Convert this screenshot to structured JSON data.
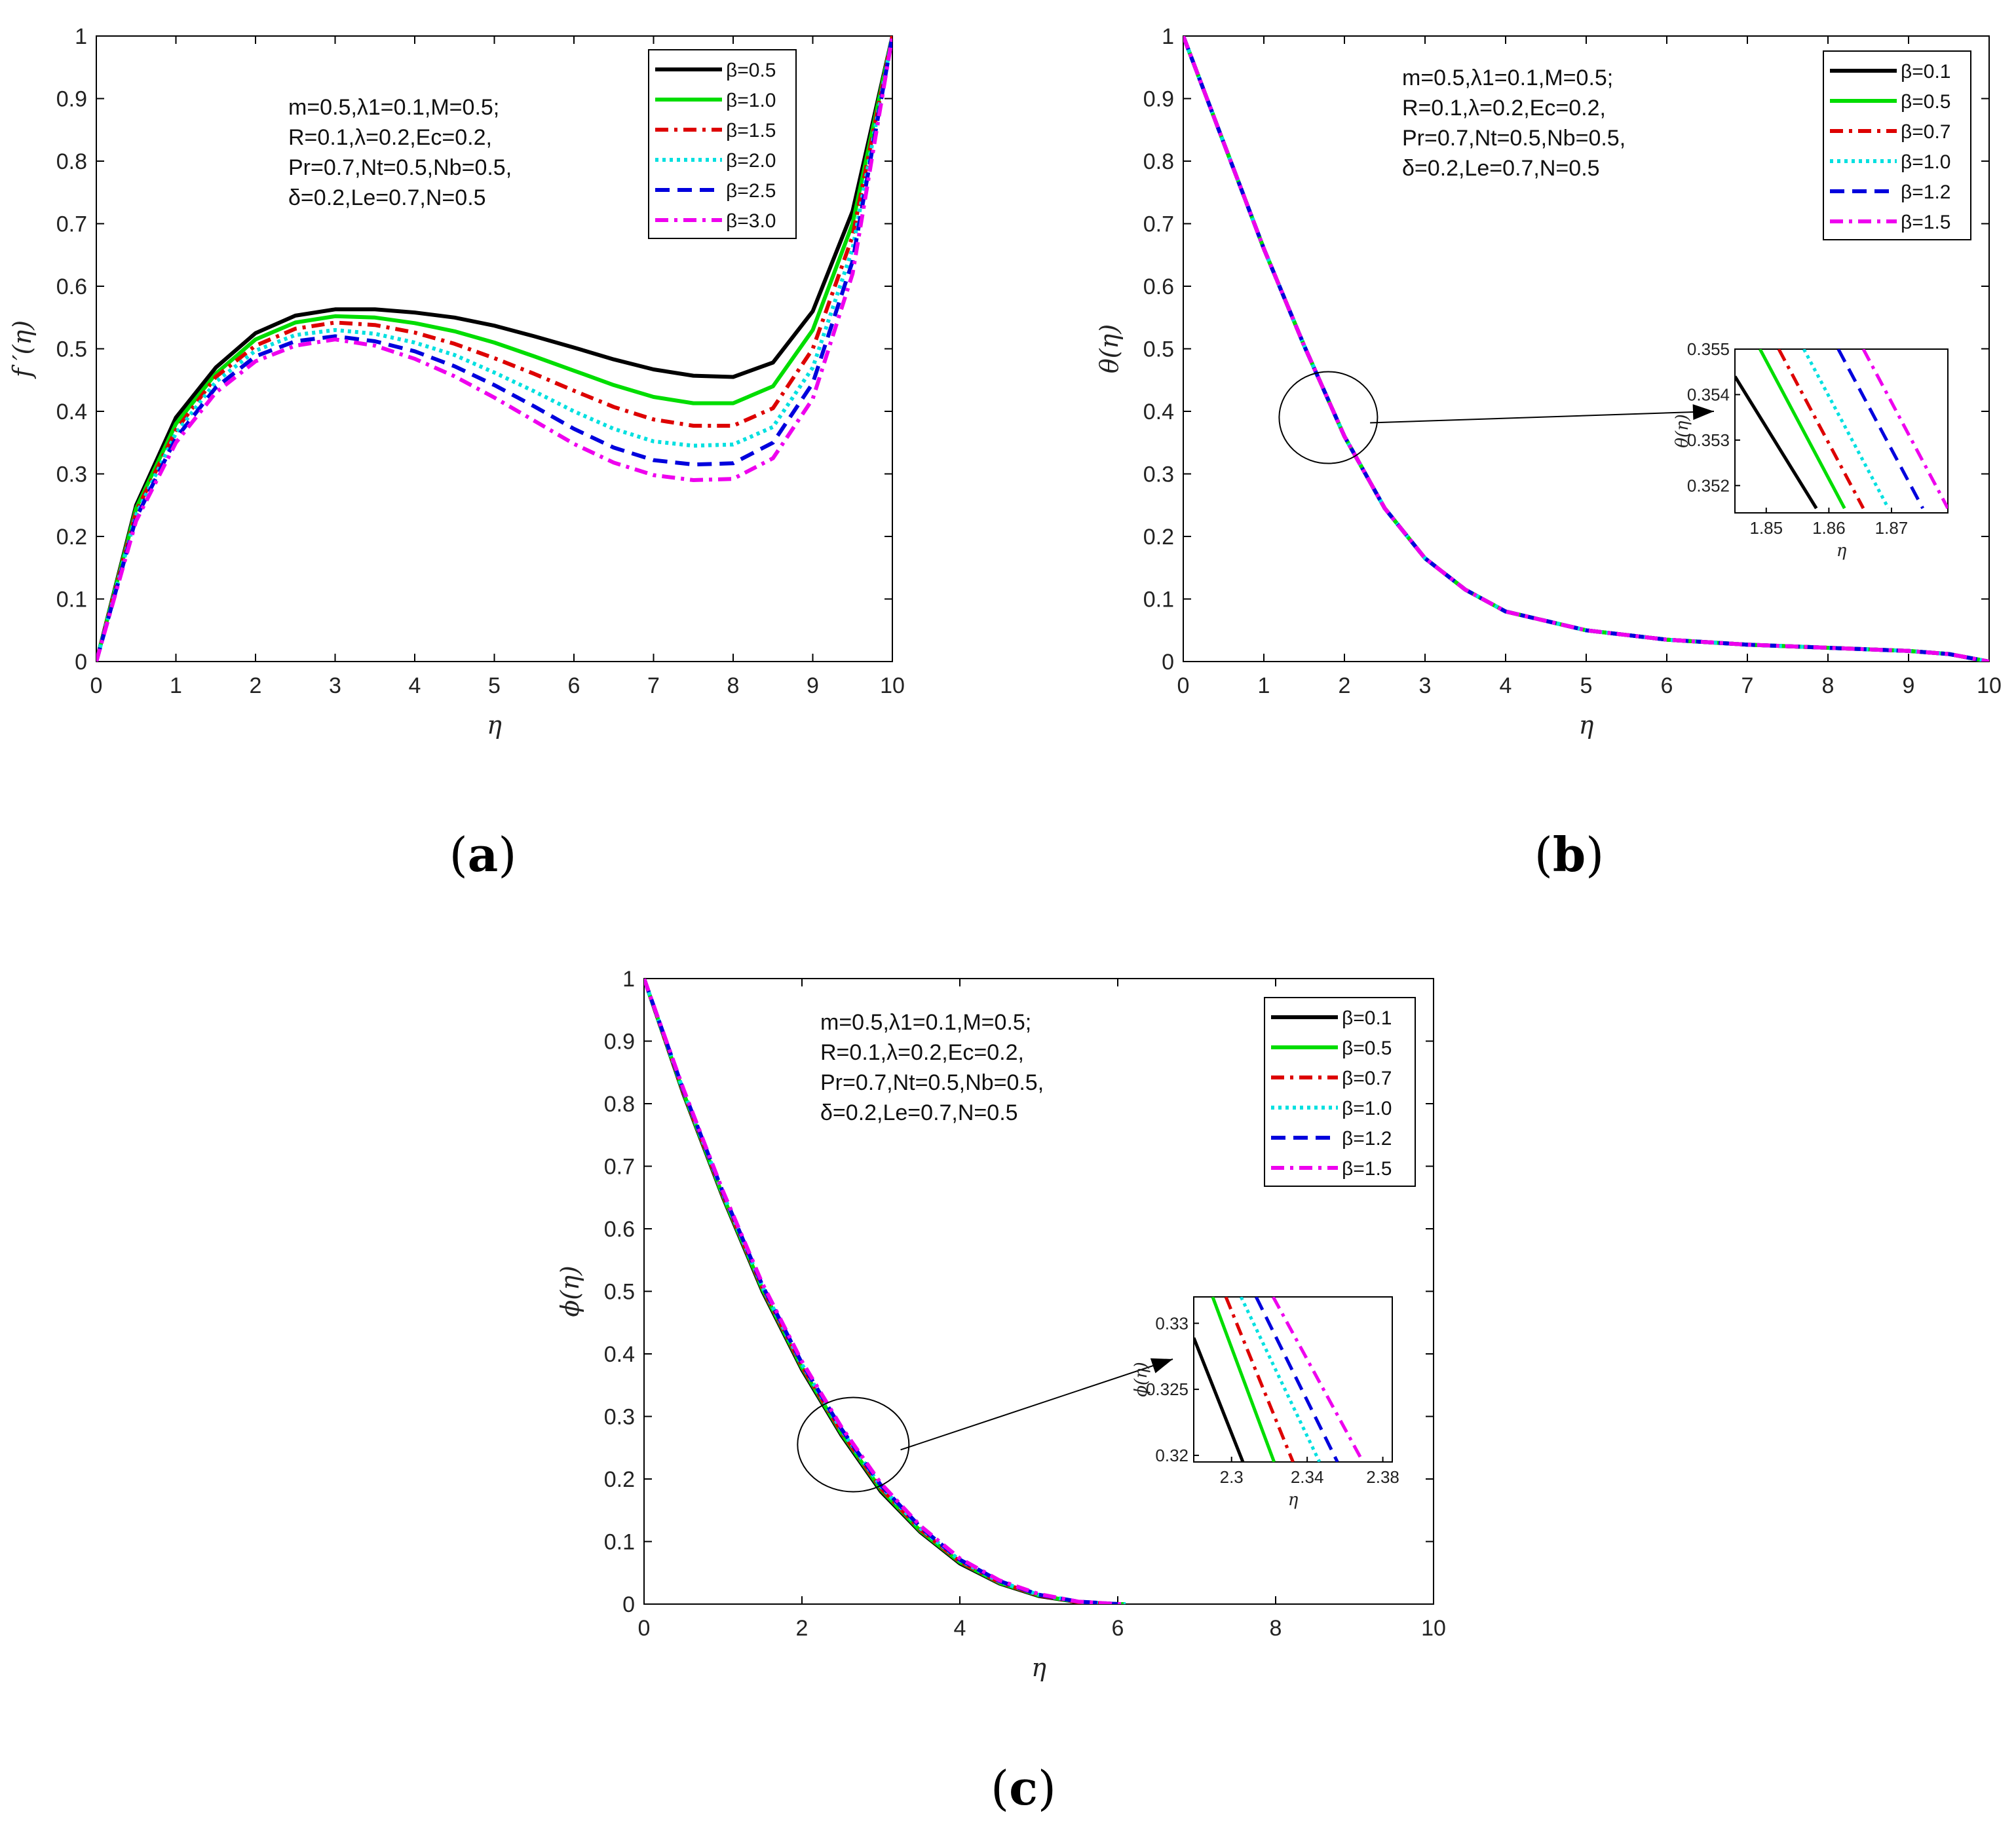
{
  "chart_data": [
    {
      "type": "line",
      "panel_label": {
        "open": "(",
        "letter": "a",
        "close": ")"
      },
      "xlabel": "η",
      "ylabel": "f ′(η)",
      "xlim": [
        0,
        10
      ],
      "ylim": [
        0,
        1
      ],
      "xticks": [
        0,
        1,
        2,
        3,
        4,
        5,
        6,
        7,
        8,
        9,
        10
      ],
      "yticks": [
        0,
        0.1,
        0.2,
        0.3,
        0.4,
        0.5,
        0.6,
        0.7,
        0.8,
        0.9,
        1
      ],
      "parameters": [
        "m=0.5,λ1=0.1,M=0.5;",
        "R=0.1,λ=0.2,Ec=0.2,",
        "Pr=0.7,Nt=0.5,Nb=0.5,",
        "δ=0.2,Le=0.7,N=0.5"
      ],
      "legend_position": "top-right",
      "series": [
        {
          "name": "β=0.5",
          "color": "#000000",
          "dash": "solid",
          "x": [
            0,
            0.5,
            1,
            1.5,
            2,
            2.5,
            3,
            3.5,
            4,
            4.5,
            5,
            5.5,
            6,
            6.5,
            7,
            7.5,
            8,
            8.5,
            9,
            9.5,
            10
          ],
          "y": [
            0,
            0.25,
            0.39,
            0.47,
            0.525,
            0.553,
            0.563,
            0.563,
            0.558,
            0.55,
            0.537,
            0.52,
            0.502,
            0.483,
            0.467,
            0.457,
            0.455,
            0.478,
            0.56,
            0.72,
            1
          ]
        },
        {
          "name": "β=1.0",
          "color": "#00dd00",
          "dash": "solid",
          "x": [
            0,
            0.5,
            1,
            1.5,
            2,
            2.5,
            3,
            3.5,
            4,
            4.5,
            5,
            5.5,
            6,
            6.5,
            7,
            7.5,
            8,
            8.5,
            9,
            9.5,
            10
          ],
          "y": [
            0,
            0.245,
            0.38,
            0.46,
            0.515,
            0.542,
            0.552,
            0.55,
            0.541,
            0.528,
            0.51,
            0.488,
            0.465,
            0.442,
            0.423,
            0.413,
            0.413,
            0.44,
            0.53,
            0.7,
            1
          ]
        },
        {
          "name": "β=1.5",
          "color": "#dd0000",
          "dash": "dashdot",
          "x": [
            0,
            0.5,
            1,
            1.5,
            2,
            2.5,
            3,
            3.5,
            4,
            4.5,
            5,
            5.5,
            6,
            6.5,
            7,
            7.5,
            8,
            8.5,
            9,
            9.5,
            10
          ],
          "y": [
            0,
            0.24,
            0.37,
            0.455,
            0.505,
            0.532,
            0.542,
            0.538,
            0.526,
            0.508,
            0.485,
            0.46,
            0.433,
            0.407,
            0.387,
            0.377,
            0.377,
            0.405,
            0.5,
            0.68,
            1
          ]
        },
        {
          "name": "β=2.0",
          "color": "#00e0e0",
          "dash": "dotted",
          "x": [
            0,
            0.5,
            1,
            1.5,
            2,
            2.5,
            3,
            3.5,
            4,
            4.5,
            5,
            5.5,
            6,
            6.5,
            7,
            7.5,
            8,
            8.5,
            9,
            9.5,
            10
          ],
          "y": [
            0,
            0.235,
            0.365,
            0.447,
            0.497,
            0.522,
            0.53,
            0.524,
            0.51,
            0.49,
            0.462,
            0.432,
            0.4,
            0.372,
            0.352,
            0.345,
            0.347,
            0.375,
            0.47,
            0.66,
            1
          ]
        },
        {
          "name": "β=2.5",
          "color": "#0000dd",
          "dash": "dashed",
          "x": [
            0,
            0.5,
            1,
            1.5,
            2,
            2.5,
            3,
            3.5,
            4,
            4.5,
            5,
            5.5,
            6,
            6.5,
            7,
            7.5,
            8,
            8.5,
            9,
            9.5,
            10
          ],
          "y": [
            0,
            0.23,
            0.357,
            0.438,
            0.488,
            0.512,
            0.52,
            0.512,
            0.496,
            0.472,
            0.442,
            0.408,
            0.372,
            0.342,
            0.322,
            0.315,
            0.317,
            0.35,
            0.445,
            0.64,
            1
          ]
        },
        {
          "name": "β=3.0",
          "color": "#ee00ee",
          "dash": "dashdot",
          "x": [
            0,
            0.5,
            1,
            1.5,
            2,
            2.5,
            3,
            3.5,
            4,
            4.5,
            5,
            5.5,
            6,
            6.5,
            7,
            7.5,
            8,
            8.5,
            9,
            9.5,
            10
          ],
          "y": [
            0,
            0.225,
            0.35,
            0.43,
            0.48,
            0.505,
            0.515,
            0.505,
            0.484,
            0.456,
            0.422,
            0.385,
            0.348,
            0.318,
            0.298,
            0.29,
            0.292,
            0.325,
            0.42,
            0.62,
            1
          ]
        }
      ]
    },
    {
      "type": "line",
      "panel_label": {
        "open": "(",
        "letter": "b",
        "close": ")"
      },
      "xlabel": "η",
      "ylabel": "θ(η)",
      "xlim": [
        0,
        10
      ],
      "ylim": [
        0,
        1
      ],
      "xticks": [
        0,
        1,
        2,
        3,
        4,
        5,
        6,
        7,
        8,
        9,
        10
      ],
      "yticks": [
        0,
        0.1,
        0.2,
        0.3,
        0.4,
        0.5,
        0.6,
        0.7,
        0.8,
        0.9,
        1
      ],
      "parameters": [
        "m=0.5,λ1=0.1,M=0.5;",
        "R=0.1,λ=0.2,Ec=0.2,",
        "Pr=0.7,Nt=0.5,Nb=0.5,",
        "δ=0.2,Le=0.7,N=0.5"
      ],
      "legend_position": "top-right",
      "zoom_circle": {
        "x": 1.8,
        "y": 0.39
      },
      "series": [
        {
          "name": "β=0.1",
          "color": "#000000",
          "dash": "solid",
          "x": [
            0,
            0.5,
            1,
            1.5,
            2,
            2.5,
            3,
            3.5,
            4,
            5,
            6,
            7,
            8,
            9,
            9.5,
            10
          ],
          "y": [
            1,
            0.83,
            0.66,
            0.505,
            0.36,
            0.245,
            0.165,
            0.115,
            0.08,
            0.05,
            0.035,
            0.027,
            0.022,
            0.017,
            0.012,
            0
          ]
        },
        {
          "name": "β=0.5",
          "color": "#00dd00",
          "dash": "solid",
          "x": [
            0,
            0.5,
            1,
            1.5,
            2,
            2.5,
            3,
            3.5,
            4,
            5,
            6,
            7,
            8,
            9,
            9.5,
            10
          ],
          "y": [
            1,
            0.83,
            0.66,
            0.505,
            0.36,
            0.245,
            0.165,
            0.115,
            0.08,
            0.05,
            0.035,
            0.027,
            0.022,
            0.017,
            0.012,
            0
          ]
        },
        {
          "name": "β=0.7",
          "color": "#dd0000",
          "dash": "dashdot",
          "x": [
            0,
            0.5,
            1,
            1.5,
            2,
            2.5,
            3,
            3.5,
            4,
            5,
            6,
            7,
            8,
            9,
            9.5,
            10
          ],
          "y": [
            1,
            0.83,
            0.66,
            0.505,
            0.36,
            0.245,
            0.165,
            0.115,
            0.08,
            0.05,
            0.035,
            0.027,
            0.022,
            0.017,
            0.012,
            0
          ]
        },
        {
          "name": "β=1.0",
          "color": "#00e0e0",
          "dash": "dotted",
          "x": [
            0,
            0.5,
            1,
            1.5,
            2,
            2.5,
            3,
            3.5,
            4,
            5,
            6,
            7,
            8,
            9,
            9.5,
            10
          ],
          "y": [
            1,
            0.83,
            0.66,
            0.505,
            0.36,
            0.245,
            0.165,
            0.115,
            0.08,
            0.05,
            0.035,
            0.027,
            0.022,
            0.017,
            0.012,
            0
          ]
        },
        {
          "name": "β=1.2",
          "color": "#0000dd",
          "dash": "dashed",
          "x": [
            0,
            0.5,
            1,
            1.5,
            2,
            2.5,
            3,
            3.5,
            4,
            5,
            6,
            7,
            8,
            9,
            9.5,
            10
          ],
          "y": [
            1,
            0.83,
            0.66,
            0.505,
            0.36,
            0.245,
            0.165,
            0.115,
            0.08,
            0.05,
            0.035,
            0.027,
            0.022,
            0.017,
            0.012,
            0
          ]
        },
        {
          "name": "β=1.5",
          "color": "#ee00ee",
          "dash": "dashdot",
          "x": [
            0,
            0.5,
            1,
            1.5,
            2,
            2.5,
            3,
            3.5,
            4,
            5,
            6,
            7,
            8,
            9,
            9.5,
            10
          ],
          "y": [
            1,
            0.83,
            0.66,
            0.505,
            0.36,
            0.245,
            0.165,
            0.115,
            0.08,
            0.05,
            0.035,
            0.027,
            0.022,
            0.017,
            0.012,
            0
          ]
        }
      ],
      "inset": {
        "xlabel": "η",
        "ylabel": "θ(η)",
        "xlim": [
          1.845,
          1.879
        ],
        "ylim": [
          0.3514,
          0.355
        ],
        "xticks": [
          1.85,
          1.86,
          1.87
        ],
        "yticks": [
          0.352,
          0.353,
          0.354,
          0.355
        ],
        "lines": [
          {
            "x": [
              1.845,
              1.858
            ],
            "y": [
              0.3544,
              0.3515
            ]
          },
          {
            "x": [
              1.849,
              1.8625
            ],
            "y": [
              0.355,
              0.3515
            ]
          },
          {
            "x": [
              1.852,
              1.8655
            ],
            "y": [
              0.355,
              0.3515
            ]
          },
          {
            "x": [
              1.856,
              1.8695
            ],
            "y": [
              0.355,
              0.3515
            ]
          },
          {
            "x": [
              1.8615,
              1.875
            ],
            "y": [
              0.355,
              0.3515
            ]
          },
          {
            "x": [
              1.8655,
              1.879
            ],
            "y": [
              0.355,
              0.3515
            ]
          }
        ]
      }
    },
    {
      "type": "line",
      "panel_label": {
        "open": "(",
        "letter": "c",
        "close": ")"
      },
      "xlabel": "η",
      "ylabel": "ϕ(η)",
      "xlim": [
        0,
        10
      ],
      "ylim": [
        0,
        1
      ],
      "xticks": [
        0,
        2,
        4,
        6,
        8,
        10
      ],
      "yticks": [
        0,
        0.1,
        0.2,
        0.3,
        0.4,
        0.5,
        0.6,
        0.7,
        0.8,
        0.9,
        1
      ],
      "parameters": [
        "m=0.5,λ1=0.1,M=0.5;",
        "R=0.1,λ=0.2,Ec=0.2,",
        "Pr=0.7,Nt=0.5,Nb=0.5,",
        "δ=0.2,Le=0.7,N=0.5"
      ],
      "legend_position": "top-right",
      "zoom_circle": {
        "x": 2.65,
        "y": 0.255
      },
      "series": [
        {
          "name": "β=0.1",
          "color": "#000000",
          "dash": "solid",
          "x": [
            0,
            0.5,
            1,
            1.5,
            2,
            2.5,
            3,
            3.5,
            4,
            4.5,
            5,
            5.5,
            6,
            6.1
          ],
          "y": [
            1,
            0.815,
            0.65,
            0.5,
            0.375,
            0.27,
            0.18,
            0.115,
            0.065,
            0.033,
            0.013,
            0.003,
            0,
            0
          ]
        },
        {
          "name": "β=0.5",
          "color": "#00dd00",
          "dash": "solid",
          "x": [
            0,
            0.5,
            1,
            1.5,
            2,
            2.5,
            3,
            3.5,
            4,
            4.5,
            5,
            5.5,
            6,
            6.1
          ],
          "y": [
            1,
            0.817,
            0.652,
            0.503,
            0.378,
            0.273,
            0.183,
            0.117,
            0.067,
            0.034,
            0.014,
            0.003,
            0,
            0
          ]
        },
        {
          "name": "β=0.7",
          "color": "#dd0000",
          "dash": "dashdot",
          "x": [
            0,
            0.5,
            1,
            1.5,
            2,
            2.5,
            3,
            3.5,
            4,
            4.5,
            5,
            5.5,
            6,
            6.1
          ],
          "y": [
            1,
            0.818,
            0.654,
            0.505,
            0.38,
            0.275,
            0.185,
            0.119,
            0.068,
            0.035,
            0.014,
            0.003,
            0,
            0
          ]
        },
        {
          "name": "β=1.0",
          "color": "#00e0e0",
          "dash": "dotted",
          "x": [
            0,
            0.5,
            1,
            1.5,
            2,
            2.5,
            3,
            3.5,
            4,
            4.5,
            5,
            5.5,
            6,
            6.1
          ],
          "y": [
            1,
            0.82,
            0.656,
            0.507,
            0.383,
            0.278,
            0.188,
            0.121,
            0.07,
            0.036,
            0.015,
            0.004,
            0,
            0
          ]
        },
        {
          "name": "β=1.2",
          "color": "#0000dd",
          "dash": "dashed",
          "x": [
            0,
            0.5,
            1,
            1.5,
            2,
            2.5,
            3,
            3.5,
            4,
            4.5,
            5,
            5.5,
            6,
            6.1
          ],
          "y": [
            1,
            0.821,
            0.658,
            0.509,
            0.385,
            0.28,
            0.19,
            0.123,
            0.071,
            0.037,
            0.015,
            0.004,
            0,
            0
          ]
        },
        {
          "name": "β=1.5",
          "color": "#ee00ee",
          "dash": "dashdot",
          "x": [
            0,
            0.5,
            1,
            1.5,
            2,
            2.5,
            3,
            3.5,
            4,
            4.5,
            5,
            5.5,
            6,
            6.1
          ],
          "y": [
            1,
            0.823,
            0.66,
            0.512,
            0.388,
            0.283,
            0.193,
            0.125,
            0.073,
            0.038,
            0.016,
            0.004,
            0,
            0
          ]
        }
      ],
      "inset": {
        "xlabel": "η",
        "ylabel": "ϕ(η)",
        "xlim": [
          2.28,
          2.385
        ],
        "ylim": [
          0.3195,
          0.332
        ],
        "xticks": [
          2.3,
          2.34,
          2.38
        ],
        "yticks": [
          0.32,
          0.325,
          0.33
        ],
        "tick_labels_x": [
          "2.3",
          "2.34",
          "2.38"
        ],
        "tick_labels_y": [
          "0.32",
          "0.325",
          "0.33"
        ],
        "lines": [
          {
            "x": [
              2.28,
              2.306
            ],
            "y": [
              0.3289,
              0.3195
            ]
          },
          {
            "x": [
              2.29,
              2.3225
            ],
            "y": [
              0.332,
              0.3195
            ]
          },
          {
            "x": [
              2.297,
              2.3325
            ],
            "y": [
              0.332,
              0.3195
            ]
          },
          {
            "x": [
              2.305,
              2.3465
            ],
            "y": [
              0.332,
              0.3195
            ]
          },
          {
            "x": [
              2.313,
              2.356
            ],
            "y": [
              0.332,
              0.3195
            ]
          },
          {
            "x": [
              2.322,
              2.3695
            ],
            "y": [
              0.332,
              0.3195
            ]
          }
        ]
      }
    }
  ]
}
